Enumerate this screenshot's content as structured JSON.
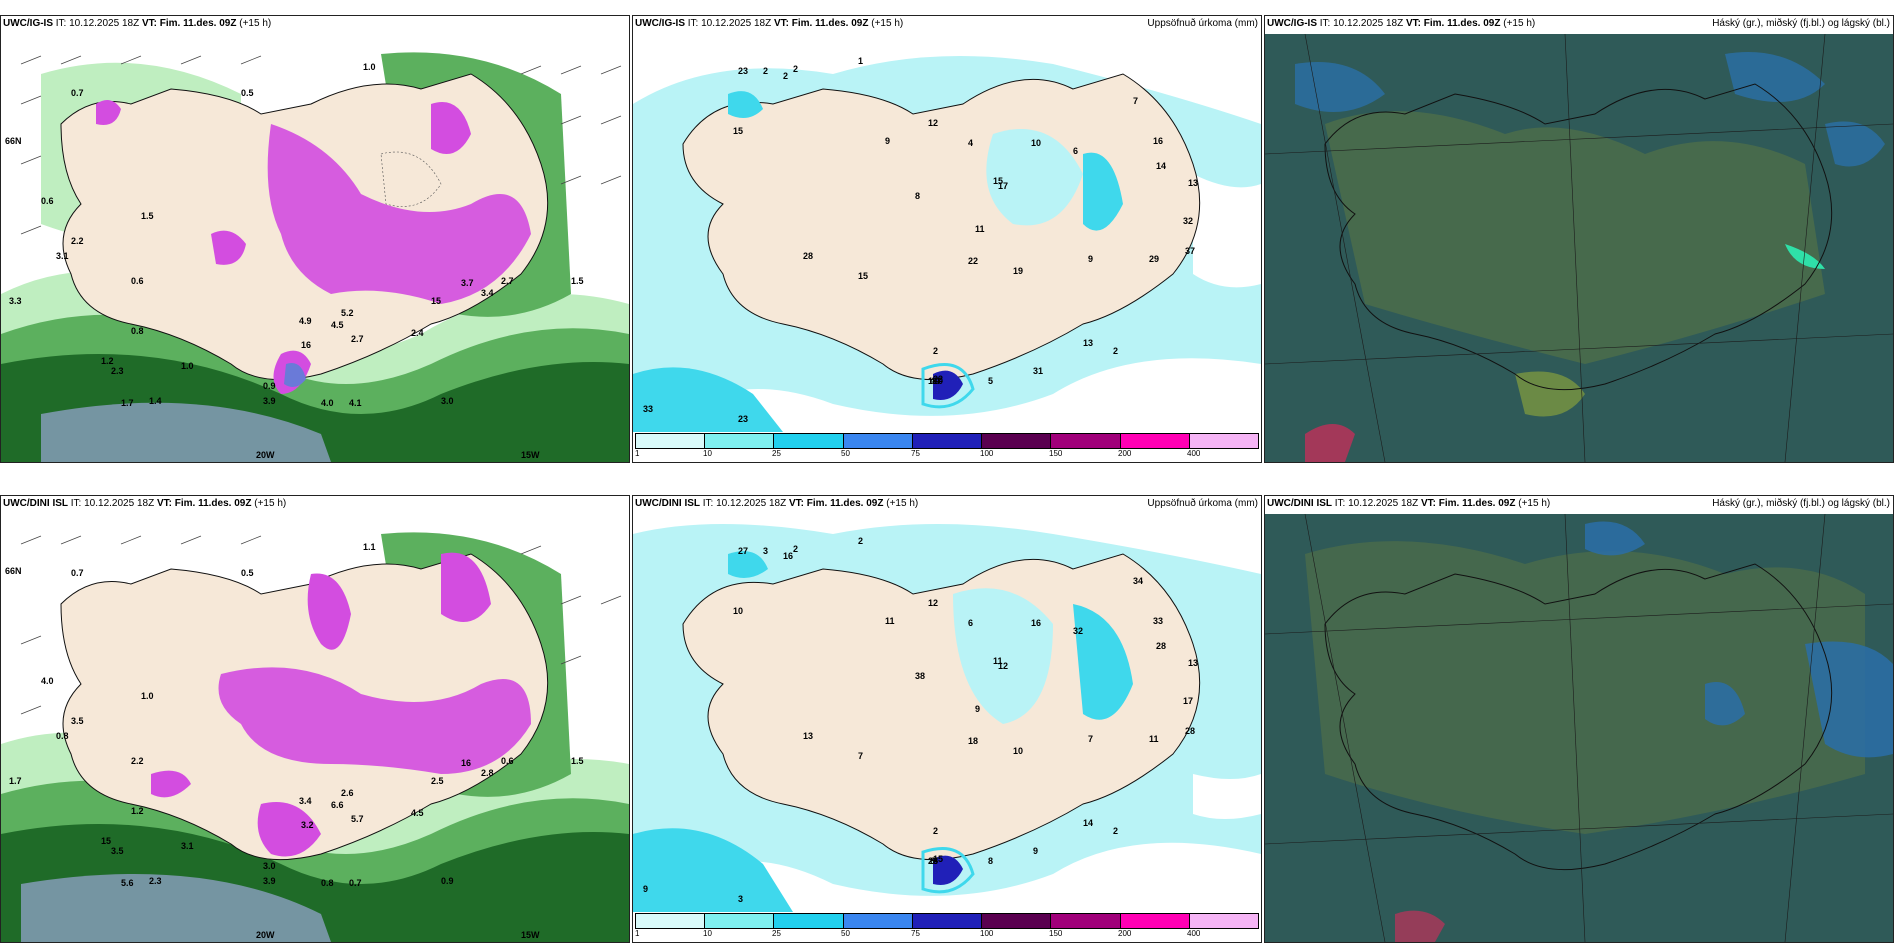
{
  "rows": [
    {
      "model": "UWC/IG-IS",
      "it_label": "IT:",
      "it_value": "10.12.2025 18Z",
      "vt_label": "VT:",
      "vt_value": "Fim. 11.des. 09Z",
      "lead": "(+15 h)",
      "precip_title": "Uppsöfnuð úrkoma (mm)",
      "cloud_title": "Háský (gr.), miðský (fj.bl.) og lágský (bl.)",
      "left_labels": [
        "0.7",
        "0.5",
        "1.0",
        "3.3",
        "3.1",
        "2.2",
        "1.5",
        "0.6",
        "4.9",
        "16",
        "5.2",
        "2.7",
        "2.4",
        "4.5",
        "3.7",
        "3.4",
        "2.3",
        "1.0",
        "0.9",
        "3.9",
        "4.0",
        "4.1",
        "3.0",
        "1.4",
        "1.7",
        "1.2",
        "0.8",
        "0.6",
        "2.7",
        "1.5",
        "15"
      ],
      "left_axis": [
        "66N",
        "20W",
        "15W"
      ],
      "precip_labels": [
        "2",
        "1",
        "2",
        "15",
        "23",
        "2",
        "12",
        "9",
        "4",
        "11",
        "15",
        "17",
        "10",
        "8",
        "6",
        "7",
        "16",
        "14",
        "13",
        "32",
        "37",
        "29",
        "31",
        "19",
        "22",
        "28",
        "1",
        "9",
        "5",
        "15",
        "10",
        "22",
        "44",
        "2",
        "2",
        "33",
        "23",
        "13"
      ]
    },
    {
      "model": "UWC/DINI ISL",
      "it_label": "IT:",
      "it_value": "10.12.2025 18Z",
      "vt_label": "VT:",
      "vt_value": "Fim. 11.des. 09Z",
      "lead": "(+15 h)",
      "precip_title": "Uppsöfnuð úrkoma (mm)",
      "cloud_title": "Háský (gr.), miðský (fj.bl.) og lágský (bl.)",
      "left_labels": [
        "0.7",
        "0.5",
        "1.1",
        "1.7",
        "0.8",
        "3.5",
        "1.0",
        "4.0",
        "3.4",
        "3.2",
        "2.6",
        "5.7",
        "4.5",
        "6.6",
        "16",
        "2.8",
        "3.5",
        "3.1",
        "3.0",
        "3.9",
        "0.8",
        "0.7",
        "0.9",
        "2.3",
        "5.6",
        "15",
        "1.2",
        "2.2",
        "0.6",
        "1.5",
        "2.5"
      ],
      "left_axis": [
        "66N",
        "20W",
        "15W"
      ],
      "precip_labels": [
        "2",
        "2",
        "3",
        "10",
        "27",
        "16",
        "12",
        "11",
        "6",
        "9",
        "11",
        "12",
        "16",
        "38",
        "32",
        "34",
        "33",
        "28",
        "13",
        "17",
        "28",
        "11",
        "9",
        "10",
        "18",
        "13",
        "25",
        "7",
        "8",
        "7",
        "8",
        "15",
        "6",
        "2",
        "2",
        "9",
        "3",
        "14"
      ]
    }
  ],
  "colorbar": {
    "ticks": [
      "1",
      "10",
      "25",
      "50",
      "75",
      "100",
      "150",
      "200",
      "400"
    ],
    "colors": [
      "#d9fafa",
      "#7ff0f0",
      "#22d0ee",
      "#3a86f0",
      "#2020b8",
      "#5a0050",
      "#a0007a",
      "#ff00b4",
      "#f5b4f5"
    ]
  },
  "colors": {
    "land": "#f6e8d8",
    "precip_light": "#b9f3f6",
    "precip_mid": "#3fd8ec",
    "snow": "#d34de0",
    "rain_dark": "#1f6b28",
    "rain_mid": "#5cb05e",
    "rain_light": "#bfeec0",
    "cloud_bg": "#2f5a58",
    "cloud_low": "#2a6fa8",
    "cloud_mid": "#6b8a45"
  }
}
